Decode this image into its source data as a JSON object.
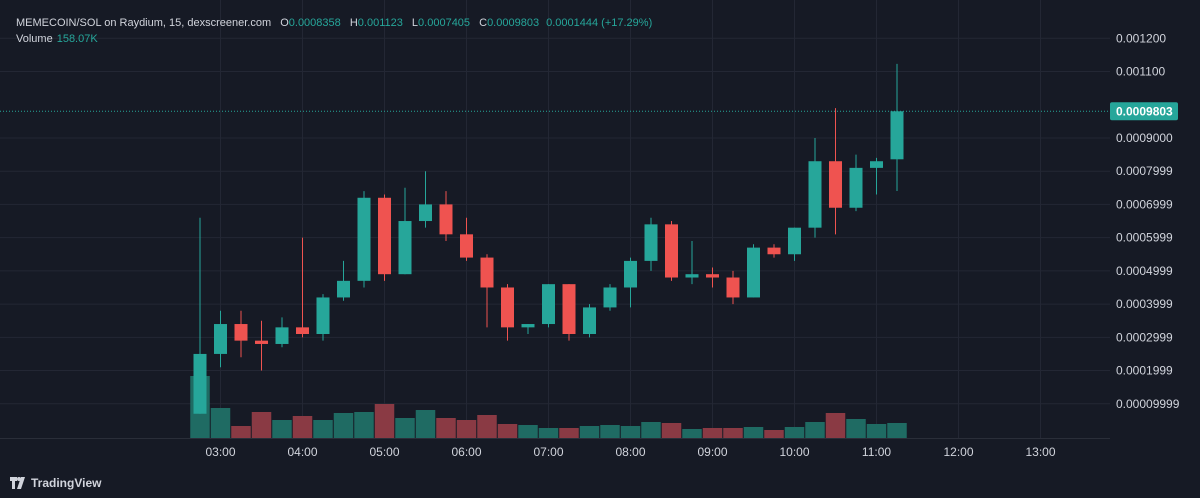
{
  "header": {
    "symbol": "MEMECOIN/SOL on Raydium, 15, dexscreener.com",
    "open_label": "O",
    "open": "0.0008358",
    "high_label": "H",
    "high": "0.001123",
    "low_label": "L",
    "low": "0.0007405",
    "close_label": "C",
    "close": "0.0009803",
    "change": "0.0001444 (+17.29%)",
    "volume_label": "Volume",
    "volume_value": "158.07K"
  },
  "branding": {
    "name": "TradingView"
  },
  "colors": {
    "background": "#161a25",
    "grid": "#232734",
    "up": "#26a69a",
    "down": "#ef5350",
    "up_volume": "#1f6b63",
    "down_volume": "#8a3a44"
  },
  "chart_data": {
    "type": "candlestick",
    "interval": "15m",
    "ylim": [
      0,
      0.00124
    ],
    "y_ticks": [
      {
        "value": 0.0001,
        "label": "0.00009999"
      },
      {
        "value": 0.0002,
        "label": "0.0001999"
      },
      {
        "value": 0.0003,
        "label": "0.0002999"
      },
      {
        "value": 0.0004,
        "label": "0.0003999"
      },
      {
        "value": 0.0005,
        "label": "0.0004999"
      },
      {
        "value": 0.0006,
        "label": "0.0005999"
      },
      {
        "value": 0.0007,
        "label": "0.0006999"
      },
      {
        "value": 0.0008,
        "label": "0.0007999"
      },
      {
        "value": 0.0009,
        "label": "0.0009000"
      },
      {
        "value": 0.0011,
        "label": "0.001100"
      },
      {
        "value": 0.0012,
        "label": "0.001200"
      }
    ],
    "x_ticks": [
      {
        "index": 1,
        "label": "03:00"
      },
      {
        "index": 5,
        "label": "04:00"
      },
      {
        "index": 9,
        "label": "05:00"
      },
      {
        "index": 13,
        "label": "06:00"
      },
      {
        "index": 17,
        "label": "07:00"
      },
      {
        "index": 21,
        "label": "08:00"
      },
      {
        "index": 25,
        "label": "09:00"
      },
      {
        "index": 29,
        "label": "10:00"
      },
      {
        "index": 33,
        "label": "11:00"
      },
      {
        "index": 37,
        "label": "12:00"
      },
      {
        "index": 41,
        "label": "13:00"
      }
    ],
    "last_price": {
      "value": 0.0009803,
      "label": "0.0009803"
    },
    "candles": [
      {
        "o": 7e-05,
        "h": 0.00066,
        "l": 7e-05,
        "c": 0.00025
      },
      {
        "o": 0.00025,
        "h": 0.00038,
        "l": 0.00021,
        "c": 0.00034
      },
      {
        "o": 0.00034,
        "h": 0.00038,
        "l": 0.00024,
        "c": 0.00029
      },
      {
        "o": 0.00029,
        "h": 0.00035,
        "l": 0.0002,
        "c": 0.00028
      },
      {
        "o": 0.00028,
        "h": 0.00036,
        "l": 0.00027,
        "c": 0.00033
      },
      {
        "o": 0.00033,
        "h": 0.0006,
        "l": 0.0003,
        "c": 0.00031
      },
      {
        "o": 0.00031,
        "h": 0.00043,
        "l": 0.00029,
        "c": 0.00042
      },
      {
        "o": 0.00042,
        "h": 0.00053,
        "l": 0.00041,
        "c": 0.00047
      },
      {
        "o": 0.00047,
        "h": 0.00074,
        "l": 0.00045,
        "c": 0.00072
      },
      {
        "o": 0.00072,
        "h": 0.00073,
        "l": 0.00047,
        "c": 0.00049
      },
      {
        "o": 0.00049,
        "h": 0.00075,
        "l": 0.00049,
        "c": 0.00065
      },
      {
        "o": 0.00065,
        "h": 0.0008,
        "l": 0.00063,
        "c": 0.0007
      },
      {
        "o": 0.0007,
        "h": 0.00074,
        "l": 0.00059,
        "c": 0.00061
      },
      {
        "o": 0.00061,
        "h": 0.00066,
        "l": 0.00053,
        "c": 0.00054
      },
      {
        "o": 0.00054,
        "h": 0.00055,
        "l": 0.00033,
        "c": 0.00045
      },
      {
        "o": 0.00045,
        "h": 0.00046,
        "l": 0.00029,
        "c": 0.00033
      },
      {
        "o": 0.00033,
        "h": 0.00034,
        "l": 0.00031,
        "c": 0.00034
      },
      {
        "o": 0.00034,
        "h": 0.00046,
        "l": 0.00033,
        "c": 0.00046
      },
      {
        "o": 0.00046,
        "h": 0.00046,
        "l": 0.00029,
        "c": 0.00031
      },
      {
        "o": 0.00031,
        "h": 0.0004,
        "l": 0.0003,
        "c": 0.00039
      },
      {
        "o": 0.00039,
        "h": 0.00046,
        "l": 0.00038,
        "c": 0.00045
      },
      {
        "o": 0.00045,
        "h": 0.00054,
        "l": 0.00039,
        "c": 0.00053
      },
      {
        "o": 0.00053,
        "h": 0.00066,
        "l": 0.0005,
        "c": 0.00064
      },
      {
        "o": 0.00064,
        "h": 0.00065,
        "l": 0.00047,
        "c": 0.00048
      },
      {
        "o": 0.00048,
        "h": 0.00059,
        "l": 0.00046,
        "c": 0.00049
      },
      {
        "o": 0.00049,
        "h": 0.00051,
        "l": 0.00045,
        "c": 0.00048
      },
      {
        "o": 0.00048,
        "h": 0.0005,
        "l": 0.0004,
        "c": 0.00042
      },
      {
        "o": 0.00042,
        "h": 0.00058,
        "l": 0.00042,
        "c": 0.00057
      },
      {
        "o": 0.00057,
        "h": 0.00058,
        "l": 0.00054,
        "c": 0.00055
      },
      {
        "o": 0.00055,
        "h": 0.00063,
        "l": 0.00053,
        "c": 0.00063
      },
      {
        "o": 0.00063,
        "h": 0.0009,
        "l": 0.0006,
        "c": 0.00083
      },
      {
        "o": 0.00083,
        "h": 0.00099,
        "l": 0.00061,
        "c": 0.00069
      },
      {
        "o": 0.00069,
        "h": 0.00085,
        "l": 0.00068,
        "c": 0.00081
      },
      {
        "o": 0.00081,
        "h": 0.00084,
        "l": 0.00073,
        "c": 0.00083
      },
      {
        "o": 0.0008358,
        "h": 0.001123,
        "l": 0.0007405,
        "c": 0.0009803
      }
    ],
    "volume": [
      {
        "v": 31,
        "dir": "up"
      },
      {
        "v": 15,
        "dir": "up"
      },
      {
        "v": 6,
        "dir": "down"
      },
      {
        "v": 13,
        "dir": "down"
      },
      {
        "v": 9,
        "dir": "up"
      },
      {
        "v": 11,
        "dir": "down"
      },
      {
        "v": 9,
        "dir": "up"
      },
      {
        "v": 12.5,
        "dir": "up"
      },
      {
        "v": 13,
        "dir": "up"
      },
      {
        "v": 17,
        "dir": "down"
      },
      {
        "v": 10,
        "dir": "up"
      },
      {
        "v": 14,
        "dir": "up"
      },
      {
        "v": 10,
        "dir": "down"
      },
      {
        "v": 9,
        "dir": "down"
      },
      {
        "v": 11.5,
        "dir": "down"
      },
      {
        "v": 7,
        "dir": "down"
      },
      {
        "v": 6.5,
        "dir": "up"
      },
      {
        "v": 5,
        "dir": "up"
      },
      {
        "v": 5,
        "dir": "down"
      },
      {
        "v": 6,
        "dir": "up"
      },
      {
        "v": 6.5,
        "dir": "up"
      },
      {
        "v": 6,
        "dir": "up"
      },
      {
        "v": 8,
        "dir": "up"
      },
      {
        "v": 7.5,
        "dir": "down"
      },
      {
        "v": 4.5,
        "dir": "up"
      },
      {
        "v": 5,
        "dir": "down"
      },
      {
        "v": 5,
        "dir": "down"
      },
      {
        "v": 5.5,
        "dir": "up"
      },
      {
        "v": 4,
        "dir": "down"
      },
      {
        "v": 5.5,
        "dir": "up"
      },
      {
        "v": 8,
        "dir": "up"
      },
      {
        "v": 12.5,
        "dir": "down"
      },
      {
        "v": 9.5,
        "dir": "up"
      },
      {
        "v": 7,
        "dir": "up"
      },
      {
        "v": 7.5,
        "dir": "up"
      }
    ]
  }
}
